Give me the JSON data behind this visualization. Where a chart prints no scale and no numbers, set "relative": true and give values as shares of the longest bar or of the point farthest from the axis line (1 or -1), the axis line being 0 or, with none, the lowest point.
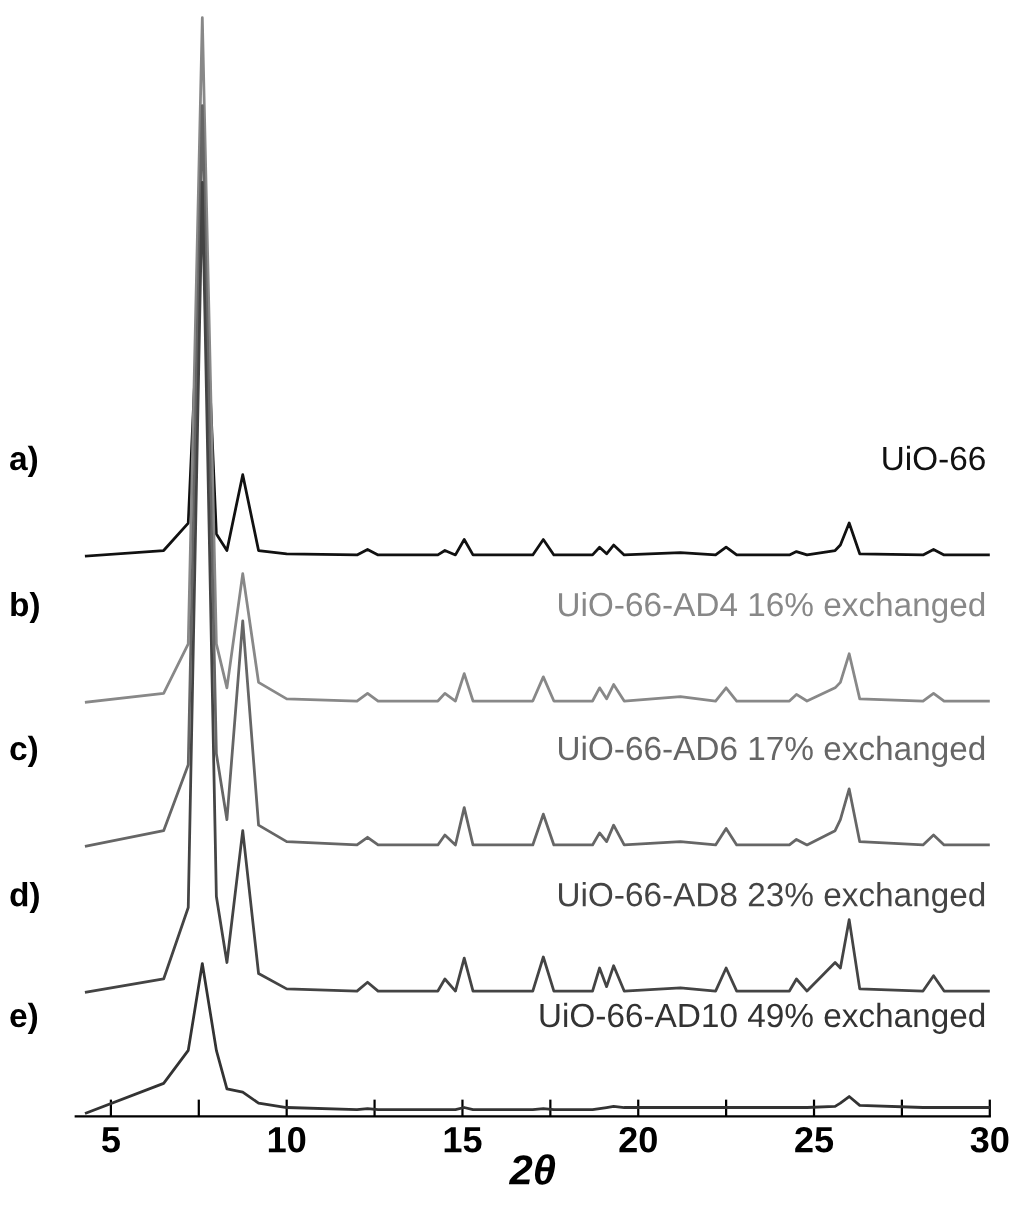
{
  "chart_data": {
    "type": "line",
    "relative": true,
    "xlabel": "2θ",
    "xlim": [
      4,
      30
    ],
    "xticks": [
      5,
      {
        "value": 7.5,
        "label": null
      },
      10,
      {
        "value": 12.5,
        "label": null
      },
      15,
      {
        "value": 17.5,
        "label": null
      },
      20,
      {
        "value": 22.5,
        "label": null
      },
      25,
      {
        "value": 27.5,
        "label": null
      },
      30
    ],
    "x": [
      4.3,
      6.5,
      7.2,
      7.6,
      8.0,
      8.3,
      8.75,
      9.2,
      10,
      12,
      12.3,
      12.6,
      14.3,
      14.5,
      14.8,
      15.05,
      15.3,
      17.0,
      17.3,
      17.6,
      18.7,
      18.9,
      19.1,
      19.3,
      19.6,
      21.2,
      22.2,
      22.5,
      22.8,
      24.3,
      24.5,
      24.8,
      25.6,
      25.75,
      26.0,
      26.3,
      28.1,
      28.4,
      28.7,
      30
    ],
    "series": [
      {
        "name": "UiO-66",
        "color": "#111111",
        "values": [
          0.51,
          0.515,
          0.54,
          0.823,
          0.53,
          0.515,
          0.584,
          0.515,
          0.512,
          0.511,
          0.516,
          0.511,
          0.511,
          0.515,
          0.511,
          0.525,
          0.511,
          0.511,
          0.525,
          0.511,
          0.511,
          0.518,
          0.512,
          0.52,
          0.511,
          0.513,
          0.511,
          0.518,
          0.511,
          0.511,
          0.514,
          0.511,
          0.515,
          0.52,
          0.54,
          0.512,
          0.511,
          0.516,
          0.511,
          0.511
        ]
      },
      {
        "name": "UiO-66-AD4 16% exchanged",
        "color": "#888888",
        "values": [
          0.377,
          0.385,
          0.43,
          1.0,
          0.43,
          0.39,
          0.494,
          0.395,
          0.38,
          0.378,
          0.385,
          0.378,
          0.378,
          0.385,
          0.378,
          0.403,
          0.378,
          0.378,
          0.4,
          0.378,
          0.378,
          0.39,
          0.38,
          0.393,
          0.378,
          0.382,
          0.378,
          0.39,
          0.378,
          0.378,
          0.384,
          0.378,
          0.39,
          0.395,
          0.421,
          0.38,
          0.378,
          0.385,
          0.378,
          0.378
        ]
      },
      {
        "name": "UiO-66-AD6 17% exchanged",
        "color": "#666666",
        "values": [
          0.246,
          0.26,
          0.32,
          0.92,
          0.33,
          0.27,
          0.451,
          0.265,
          0.25,
          0.247,
          0.254,
          0.247,
          0.247,
          0.256,
          0.247,
          0.281,
          0.247,
          0.247,
          0.275,
          0.247,
          0.247,
          0.258,
          0.25,
          0.265,
          0.247,
          0.25,
          0.247,
          0.262,
          0.247,
          0.247,
          0.252,
          0.247,
          0.26,
          0.27,
          0.298,
          0.25,
          0.247,
          0.256,
          0.247,
          0.247
        ]
      },
      {
        "name": "UiO-66-AD8 23% exchanged",
        "color": "#444444",
        "values": [
          0.113,
          0.125,
          0.19,
          0.85,
          0.2,
          0.14,
          0.26,
          0.13,
          0.116,
          0.114,
          0.122,
          0.114,
          0.114,
          0.125,
          0.114,
          0.144,
          0.114,
          0.114,
          0.145,
          0.114,
          0.114,
          0.135,
          0.118,
          0.137,
          0.114,
          0.117,
          0.114,
          0.135,
          0.114,
          0.114,
          0.125,
          0.114,
          0.14,
          0.135,
          0.179,
          0.116,
          0.114,
          0.128,
          0.114,
          0.114
        ]
      },
      {
        "name": "UiO-66-AD10 49% exchanged",
        "color": "#333333",
        "values": [
          0.003,
          0.03,
          0.06,
          0.139,
          0.06,
          0.025,
          0.022,
          0.012,
          0.008,
          0.006,
          0.007,
          0.006,
          0.006,
          0.006,
          0.006,
          0.008,
          0.006,
          0.006,
          0.007,
          0.006,
          0.006,
          0.007,
          0.008,
          0.009,
          0.008,
          0.008,
          0.008,
          0.008,
          0.008,
          0.008,
          0.008,
          0.008,
          0.009,
          0.012,
          0.018,
          0.01,
          0.008,
          0.008,
          0.008,
          0.008
        ]
      }
    ],
    "annotations": [
      "a)",
      "b)",
      "c)",
      "d)",
      "e)"
    ]
  }
}
